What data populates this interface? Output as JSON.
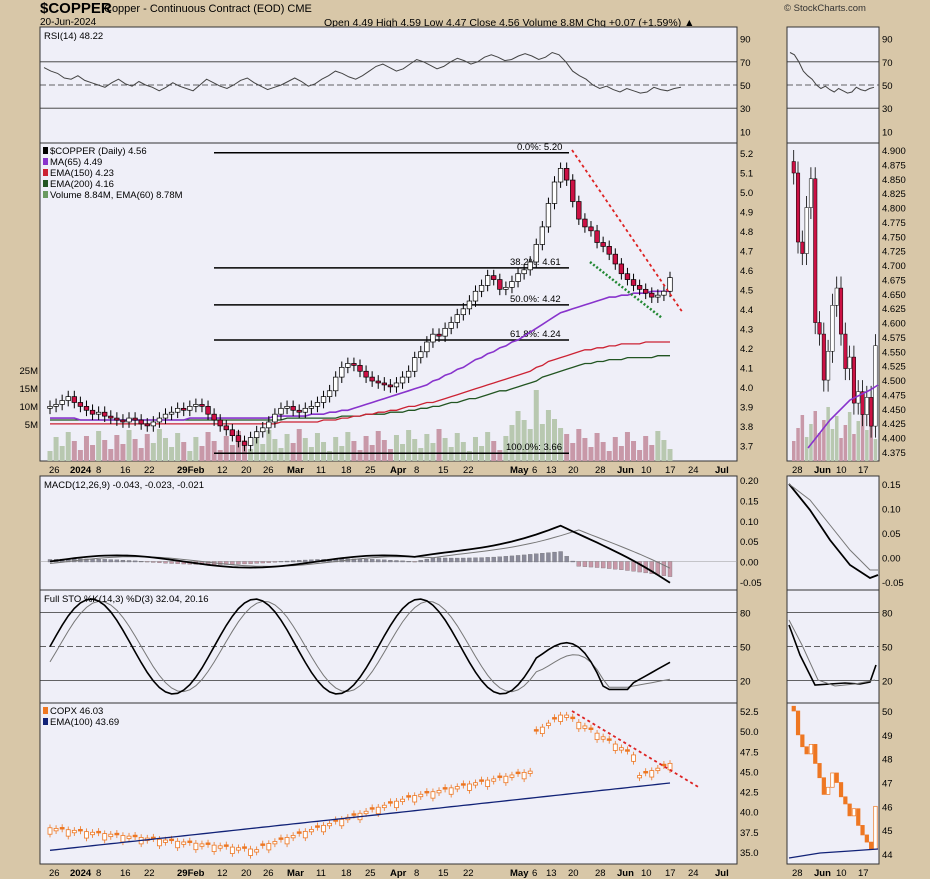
{
  "header": {
    "symbol": "$COPPER",
    "name": "Copper - Continuous Contract (EOD)",
    "exchange": "CME",
    "date": "20-Jun-2024",
    "quote": "Open 4.49  High 4.59  Low 4.47  Close 4.56  Volume 8.8M  Chg +0.07 (+1.59%) ▲",
    "credit": "© StockCharts.com"
  },
  "colors": {
    "panel_bg": "#efeff8",
    "frame": "#d8c7a8",
    "up": "#ffffff",
    "down": "#cc1144",
    "copx": "#ee7722",
    "ma65": "#8833cc",
    "ema150": "#cc2233",
    "ema200": "#225522",
    "ema100": "#112277",
    "trend": "#dd2222",
    "trend_green": "#228833"
  },
  "chart_data": [
    {
      "type": "line",
      "panel": "rsi",
      "legend": "RSI(14) 48.22",
      "ylim": [
        0,
        100
      ],
      "right_ticks": [
        "90",
        "70",
        "50",
        "30",
        "10"
      ],
      "levels": [
        70,
        50,
        30
      ],
      "values": [
        65,
        62,
        60,
        56,
        55,
        58,
        54,
        52,
        50,
        48,
        52,
        55,
        51,
        49,
        53,
        50,
        48,
        45,
        48,
        52,
        49,
        47,
        45,
        50,
        55,
        52,
        49,
        47,
        50,
        54,
        56,
        52,
        49,
        46,
        48,
        50,
        53,
        56,
        53,
        49,
        51,
        55,
        58,
        62,
        60,
        57,
        55,
        58,
        62,
        66,
        68,
        65,
        62,
        64,
        68,
        72,
        70,
        67,
        64,
        66,
        70,
        73,
        71,
        68,
        70,
        74,
        76,
        74,
        71,
        72,
        75,
        77,
        75,
        72,
        74,
        78,
        76,
        70,
        62,
        58,
        55,
        50,
        47,
        49,
        46,
        44,
        47,
        45,
        43,
        44,
        48,
        46,
        45,
        47,
        48
      ]
    },
    {
      "type": "candlestick",
      "panel": "price",
      "legend": [
        "$COPPER (Daily) 4.56",
        "MA(65) 4.49",
        "EMA(150) 4.23",
        "EMA(200) 4.16",
        "Volume 8.84M, EMA(60) 8.78M"
      ],
      "ylim": [
        3.62,
        5.25
      ],
      "right_ticks": [
        "5.2",
        "5.1",
        "5.0",
        "4.9",
        "4.8",
        "4.7",
        "4.6",
        "4.5",
        "4.4",
        "4.3",
        "4.2",
        "4.1",
        "4.0",
        "3.9",
        "3.8",
        "3.7"
      ],
      "volume_ticks": [
        "25M",
        "15M",
        "10M",
        "5M"
      ],
      "x_labels": [
        "26",
        "2024",
        "8",
        "16",
        "22",
        "29Feb",
        "12",
        "20",
        "26",
        "Mar",
        "11",
        "18",
        "25",
        "Apr",
        "8",
        "15",
        "22",
        "May",
        "6",
        "13",
        "20",
        "28",
        "Jun",
        "10",
        "17",
        "24",
        "Jul"
      ],
      "fib_levels": [
        {
          "label": "0.0%: 5.20",
          "value": 5.2
        },
        {
          "label": "38.2%: 4.61",
          "value": 4.61
        },
        {
          "label": "50.0%: 4.42",
          "value": 4.42
        },
        {
          "label": "61.8%: 4.24",
          "value": 4.24
        },
        {
          "label": "100.0%: 3.66",
          "value": 3.66
        }
      ],
      "close": [
        3.9,
        3.91,
        3.93,
        3.95,
        3.92,
        3.9,
        3.88,
        3.86,
        3.87,
        3.85,
        3.84,
        3.83,
        3.82,
        3.84,
        3.83,
        3.81,
        3.8,
        3.82,
        3.84,
        3.86,
        3.87,
        3.89,
        3.88,
        3.9,
        3.91,
        3.9,
        3.86,
        3.83,
        3.8,
        3.78,
        3.75,
        3.72,
        3.7,
        3.74,
        3.77,
        3.79,
        3.82,
        3.86,
        3.89,
        3.9,
        3.88,
        3.87,
        3.89,
        3.9,
        3.92,
        3.95,
        3.98,
        4.05,
        4.1,
        4.12,
        4.11,
        4.08,
        4.05,
        4.03,
        4.02,
        4.01,
        4.0,
        4.02,
        4.05,
        4.08,
        4.15,
        4.18,
        4.23,
        4.27,
        4.26,
        4.3,
        4.33,
        4.37,
        4.4,
        4.44,
        4.49,
        4.52,
        4.57,
        4.55,
        4.5,
        4.51,
        4.54,
        4.58,
        4.6,
        4.64,
        4.73,
        4.82,
        4.94,
        5.05,
        5.12,
        5.06,
        4.95,
        4.86,
        4.82,
        4.8,
        4.74,
        4.72,
        4.68,
        4.63,
        4.58,
        4.55,
        4.52,
        4.5,
        4.48,
        4.46,
        4.47,
        4.49,
        4.56
      ],
      "ma65": [
        3.84,
        3.84,
        3.84,
        3.84,
        3.84,
        3.83,
        3.83,
        3.83,
        3.83,
        3.83,
        3.83,
        3.83,
        3.83,
        3.83,
        3.83,
        3.83,
        3.83,
        3.83,
        3.83,
        3.83,
        3.83,
        3.83,
        3.83,
        3.84,
        3.84,
        3.84,
        3.84,
        3.84,
        3.84,
        3.84,
        3.84,
        3.84,
        3.84,
        3.84,
        3.84,
        3.84,
        3.84,
        3.85,
        3.85,
        3.85,
        3.85,
        3.85,
        3.85,
        3.86,
        3.86,
        3.86,
        3.87,
        3.87,
        3.88,
        3.88,
        3.89,
        3.9,
        3.91,
        3.92,
        3.93,
        3.94,
        3.95,
        3.96,
        3.97,
        3.98,
        3.99,
        4.0,
        4.01,
        4.03,
        4.04,
        4.06,
        4.07,
        4.09,
        4.1,
        4.12,
        4.14,
        4.15,
        4.17,
        4.18,
        4.2,
        4.21,
        4.23,
        4.24,
        4.26,
        4.28,
        4.3,
        4.32,
        4.34,
        4.36,
        4.38,
        4.39,
        4.4,
        4.41,
        4.42,
        4.43,
        4.44,
        4.45,
        4.46,
        4.46,
        4.47,
        4.47,
        4.48,
        4.48,
        4.48,
        4.49,
        4.49,
        4.49,
        4.49
      ],
      "ema150": [
        3.81,
        3.81,
        3.81,
        3.81,
        3.81,
        3.81,
        3.81,
        3.81,
        3.81,
        3.81,
        3.81,
        3.81,
        3.81,
        3.81,
        3.81,
        3.81,
        3.81,
        3.81,
        3.81,
        3.81,
        3.81,
        3.81,
        3.81,
        3.81,
        3.81,
        3.81,
        3.81,
        3.81,
        3.81,
        3.81,
        3.81,
        3.81,
        3.81,
        3.81,
        3.81,
        3.81,
        3.81,
        3.81,
        3.82,
        3.82,
        3.82,
        3.82,
        3.82,
        3.82,
        3.82,
        3.83,
        3.83,
        3.83,
        3.84,
        3.84,
        3.85,
        3.85,
        3.86,
        3.86,
        3.87,
        3.87,
        3.88,
        3.88,
        3.89,
        3.9,
        3.9,
        3.91,
        3.92,
        3.92,
        3.93,
        3.94,
        3.95,
        3.96,
        3.97,
        3.98,
        3.99,
        4.0,
        4.01,
        4.02,
        4.03,
        4.04,
        4.05,
        4.06,
        4.07,
        4.08,
        4.1,
        4.11,
        4.13,
        4.14,
        4.15,
        4.16,
        4.17,
        4.18,
        4.19,
        4.19,
        4.2,
        4.2,
        4.21,
        4.21,
        4.22,
        4.22,
        4.22,
        4.22,
        4.23,
        4.23,
        4.23,
        4.23,
        4.23
      ],
      "ema200": [
        3.83,
        3.83,
        3.83,
        3.83,
        3.83,
        3.83,
        3.83,
        3.83,
        3.83,
        3.83,
        3.83,
        3.83,
        3.83,
        3.83,
        3.83,
        3.83,
        3.83,
        3.83,
        3.83,
        3.83,
        3.83,
        3.83,
        3.83,
        3.83,
        3.83,
        3.83,
        3.83,
        3.83,
        3.83,
        3.83,
        3.83,
        3.83,
        3.83,
        3.83,
        3.83,
        3.83,
        3.83,
        3.83,
        3.83,
        3.84,
        3.84,
        3.84,
        3.84,
        3.84,
        3.84,
        3.84,
        3.84,
        3.84,
        3.85,
        3.85,
        3.85,
        3.85,
        3.86,
        3.86,
        3.86,
        3.86,
        3.87,
        3.87,
        3.87,
        3.88,
        3.88,
        3.89,
        3.89,
        3.9,
        3.9,
        3.91,
        3.92,
        3.92,
        3.93,
        3.94,
        3.94,
        3.95,
        3.96,
        3.97,
        3.98,
        3.98,
        3.99,
        4.0,
        4.01,
        4.02,
        4.03,
        4.05,
        4.06,
        4.07,
        4.08,
        4.09,
        4.1,
        4.11,
        4.12,
        4.12,
        4.13,
        4.13,
        4.14,
        4.14,
        4.14,
        4.15,
        4.15,
        4.15,
        4.15,
        4.15,
        4.16,
        4.16,
        4.16
      ]
    },
    {
      "type": "line",
      "panel": "macd",
      "legend": "MACD(12,26,9) -0.043, -0.023, -0.021",
      "ylim": [
        -0.07,
        0.21
      ],
      "right_ticks": [
        "0.20",
        "0.15",
        "0.10",
        "0.05",
        "0.00",
        "-0.05"
      ]
    },
    {
      "type": "line",
      "panel": "stochastic",
      "legend": "Full STO %K(14,3) %D(3) 32.04, 20.16",
      "ylim": [
        0,
        100
      ],
      "right_ticks": [
        "80",
        "50",
        "20"
      ],
      "levels": [
        80,
        50,
        20
      ]
    },
    {
      "type": "candlestick",
      "panel": "copx",
      "legend": [
        "COPX 46.03",
        "EMA(100) 43.69"
      ],
      "ylim": [
        33.5,
        53.5
      ],
      "right_ticks": [
        "52.5",
        "50.0",
        "47.5",
        "45.0",
        "42.5",
        "40.0",
        "37.5",
        "35.0"
      ],
      "x_labels": [
        "26",
        "2024",
        "8",
        "16",
        "22",
        "29Feb",
        "12",
        "20",
        "26",
        "Mar",
        "11",
        "18",
        "25",
        "Apr",
        "8",
        "15",
        "22",
        "May",
        "6",
        "13",
        "20",
        "28",
        "Jun",
        "10",
        "17",
        "24",
        "Jul"
      ]
    }
  ],
  "zoom": {
    "x_labels": [
      "28",
      "Jun",
      "10",
      "17"
    ],
    "price_ticks": [
      "4.900",
      "4.875",
      "4.850",
      "4.825",
      "4.800",
      "4.775",
      "4.750",
      "4.725",
      "4.700",
      "4.675",
      "4.650",
      "4.625",
      "4.600",
      "4.575",
      "4.550",
      "4.525",
      "4.500",
      "4.475",
      "4.450",
      "4.425",
      "4.400",
      "4.375"
    ],
    "rsi_ticks": [
      "90",
      "70",
      "50",
      "30",
      "10"
    ],
    "macd_ticks": [
      "0.15",
      "0.10",
      "0.05",
      "0.00",
      "-0.05"
    ],
    "sto_ticks": [
      "80",
      "50",
      "20"
    ],
    "copx_ticks": [
      "50",
      "49",
      "48",
      "47",
      "46",
      "45",
      "44"
    ]
  }
}
